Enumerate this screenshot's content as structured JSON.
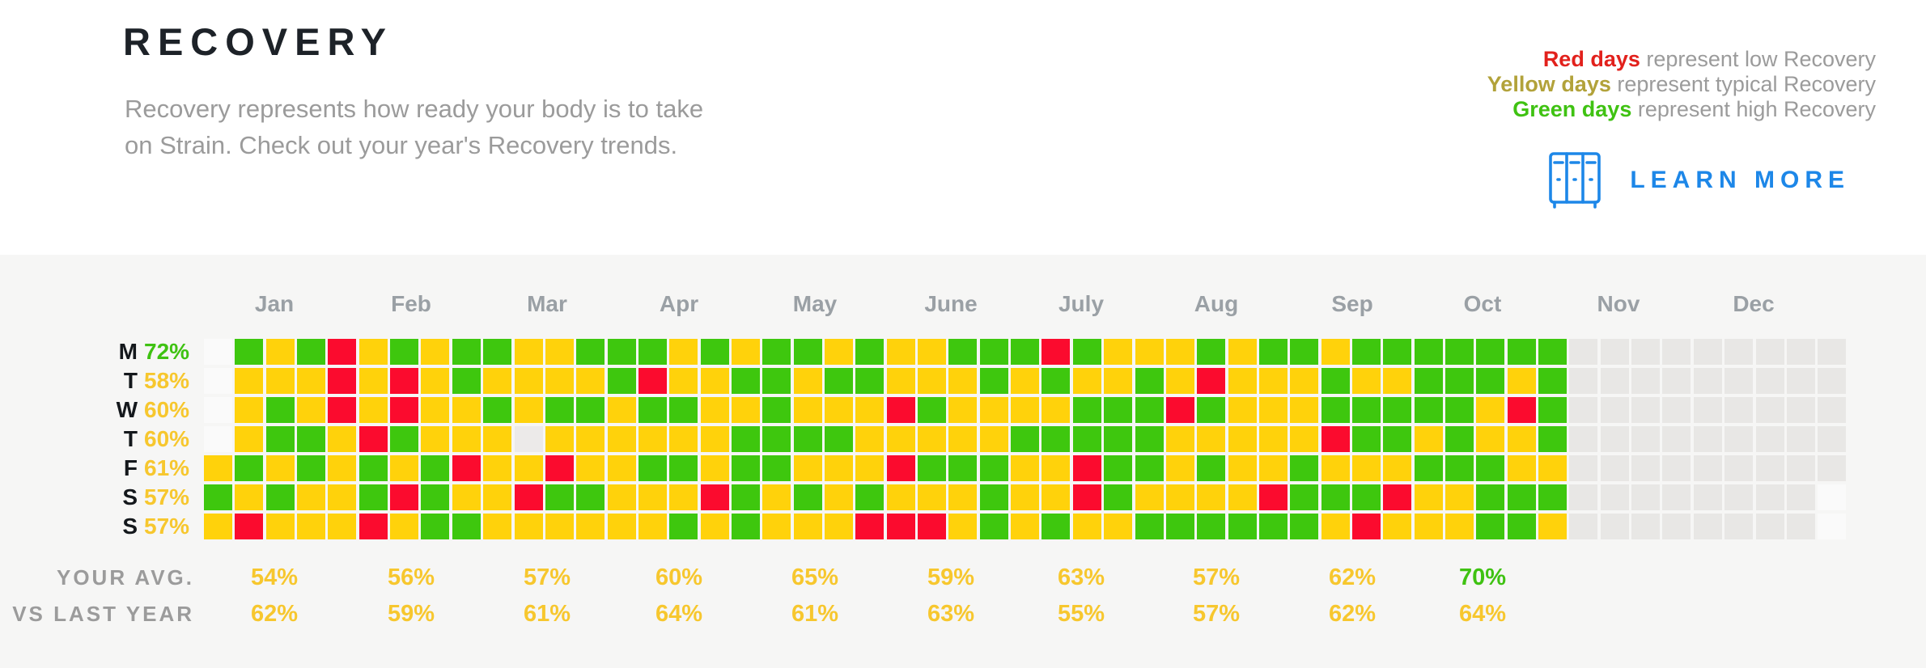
{
  "header": {
    "title": "RECOVERY",
    "description": "Recovery represents how ready your body is to take on Strain. Check out your year's Recovery trends.",
    "legend": [
      {
        "keyword": "Red days",
        "text": " represent low Recovery",
        "color": "#e2211c"
      },
      {
        "keyword": "Yellow days",
        "text": " represent typical Recovery",
        "color": "#b2a23a"
      },
      {
        "keyword": "Green days",
        "text": " represent high Recovery",
        "color": "#3fc212"
      }
    ],
    "learn_more_label": "LEARN MORE",
    "accent_blue": "#1d87e8"
  },
  "chart_data": {
    "type": "heatmap",
    "title": "RECOVERY",
    "legend_position": "top-right",
    "cell_colors": {
      "G": "#3ec70e",
      "Y": "#ffd20b",
      "R": "#fb0b2e",
      "X": "#e8e7e5",
      "M": "#eceae9",
      "E": "#fafafa"
    },
    "color_meaning": {
      "G": "high recovery day",
      "Y": "typical recovery day",
      "R": "low recovery day",
      "X": "future day",
      "M": "missing data day",
      "E": "empty (outside year)"
    },
    "day_rows": [
      {
        "letter": "M",
        "avg": "72%",
        "color": "#3fc212"
      },
      {
        "letter": "T",
        "avg": "58%",
        "color": "#f7c72e"
      },
      {
        "letter": "W",
        "avg": "60%",
        "color": "#f7c72e"
      },
      {
        "letter": "T",
        "avg": "60%",
        "color": "#f7c72e"
      },
      {
        "letter": "F",
        "avg": "61%",
        "color": "#f7c72e"
      },
      {
        "letter": "S",
        "avg": "57%",
        "color": "#f7c72e"
      },
      {
        "letter": "S",
        "avg": "57%",
        "color": "#f7c72e"
      }
    ],
    "weeks": [
      "EEEEYGY",
      "GYYYGYR",
      "YYGGYGY",
      "GYYGGYY",
      "RRRYYYY",
      "YYYRGGR",
      "GRRGYRY",
      "YYYYGGG",
      "GGYYRYG",
      "GYGYYYY",
      "YYYMYRY",
      "YYGYRGY",
      "GYGYYGY",
      "GGYYYYY",
      "GRGYGYY",
      "YYGYGYG",
      "GYYYYRY",
      "YGYGGGG",
      "GGGGGYY",
      "GYYGYGY",
      "YGYGYYY",
      "GGYYYGR",
      "YYRYRYR",
      "YYGYGYR",
      "GYYYGYY",
      "GGYYGGG",
      "GYYGYYY",
      "RGYGYYG",
      "GYGGRRY",
      "YYGGGGY",
      "YGGGGYG",
      "YYRYYYG",
      "GRGYGYG",
      "YYYYYYG",
      "GYYYYRG",
      "GYYYGGG",
      "YGGRYGY",
      "GYGGYGR",
      "GYGGYRY",
      "GGGYGYY",
      "GGGGGYY",
      "GGYYGGG",
      "GYRYYGG",
      "GGGGYGY",
      "XXXXXXX",
      "XXXXXXX",
      "XXXXXXX",
      "XXXXXXX",
      "XXXXXXX",
      "XXXXXXX",
      "XXXXXXX",
      "XXXXXXX",
      "XXXXXEE"
    ],
    "months": [
      {
        "label": "Jan",
        "center": 339,
        "your_avg": "54%",
        "vs_last_year": "62%",
        "avg_color": "#f7c72e"
      },
      {
        "label": "Feb",
        "center": 508,
        "your_avg": "56%",
        "vs_last_year": "59%",
        "avg_color": "#f7c72e"
      },
      {
        "label": "Mar",
        "center": 676,
        "your_avg": "57%",
        "vs_last_year": "61%",
        "avg_color": "#f7c72e"
      },
      {
        "label": "Apr",
        "center": 839,
        "your_avg": "60%",
        "vs_last_year": "64%",
        "avg_color": "#f7c72e"
      },
      {
        "label": "May",
        "center": 1007,
        "your_avg": "65%",
        "vs_last_year": "61%",
        "avg_color": "#f7c72e"
      },
      {
        "label": "June",
        "center": 1175,
        "your_avg": "59%",
        "vs_last_year": "63%",
        "avg_color": "#f7c72e"
      },
      {
        "label": "July",
        "center": 1336,
        "your_avg": "63%",
        "vs_last_year": "55%",
        "avg_color": "#f7c72e"
      },
      {
        "label": "Aug",
        "center": 1503,
        "your_avg": "57%",
        "vs_last_year": "57%",
        "avg_color": "#f7c72e"
      },
      {
        "label": "Sep",
        "center": 1671,
        "your_avg": "62%",
        "vs_last_year": "62%",
        "avg_color": "#f7c72e"
      },
      {
        "label": "Oct",
        "center": 1832,
        "your_avg": "70%",
        "vs_last_year": "64%",
        "avg_color": "#3fc212"
      },
      {
        "label": "Nov",
        "center": 2000,
        "your_avg": null,
        "vs_last_year": null,
        "avg_color": null
      },
      {
        "label": "Dec",
        "center": 2167,
        "your_avg": null,
        "vs_last_year": null,
        "avg_color": null
      }
    ],
    "avg_row_label": "YOUR AVG.",
    "vs_row_label": "VS LAST YEAR",
    "vs_value_color": "#f7c72e"
  }
}
